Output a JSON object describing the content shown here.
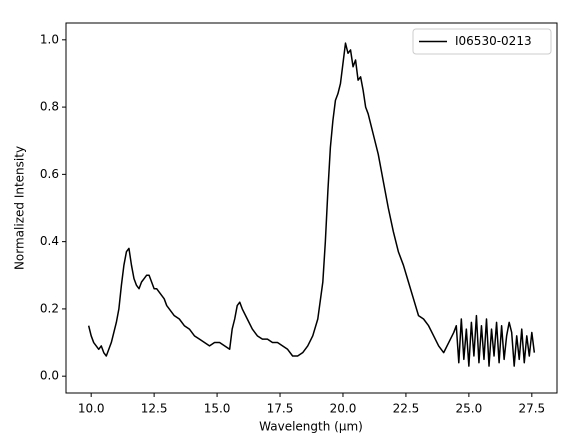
{
  "chart_data": {
    "type": "line",
    "xlabel": "Wavelength (μm)",
    "ylabel": "Normalized Intensity",
    "xlim": [
      9.0,
      28.5
    ],
    "ylim": [
      -0.05,
      1.05
    ],
    "xticks": [
      {
        "value": 10,
        "label": "10.0"
      },
      12.5,
      {
        "value": 15,
        "label": "15.0"
      },
      17.5,
      {
        "value": 20,
        "label": "20.0"
      },
      22.5,
      {
        "value": 25,
        "label": "25.0"
      },
      27.5
    ],
    "yticks": [
      {
        "value": 0,
        "label": "0.0"
      },
      0.2,
      0.4,
      0.6,
      0.8,
      {
        "value": 1,
        "label": "1.0"
      }
    ],
    "legend": "upper right",
    "series": [
      {
        "name": "I06530-0213",
        "color": "#000000",
        "x": [
          9.9,
          10.0,
          10.1,
          10.2,
          10.3,
          10.4,
          10.5,
          10.6,
          10.7,
          10.8,
          10.9,
          11.0,
          11.1,
          11.2,
          11.3,
          11.4,
          11.5,
          11.6,
          11.7,
          11.8,
          11.9,
          12.0,
          12.1,
          12.2,
          12.3,
          12.4,
          12.5,
          12.6,
          12.7,
          12.8,
          12.9,
          13.0,
          13.1,
          13.2,
          13.3,
          13.5,
          13.7,
          13.9,
          14.1,
          14.3,
          14.5,
          14.7,
          14.9,
          15.1,
          15.3,
          15.5,
          15.6,
          15.7,
          15.8,
          15.9,
          16.0,
          16.2,
          16.4,
          16.6,
          16.8,
          17.0,
          17.2,
          17.4,
          17.6,
          17.8,
          18.0,
          18.2,
          18.4,
          18.6,
          18.8,
          19.0,
          19.2,
          19.3,
          19.4,
          19.5,
          19.6,
          19.7,
          19.8,
          19.9,
          20.0,
          20.1,
          20.2,
          20.3,
          20.4,
          20.5,
          20.6,
          20.7,
          20.8,
          20.9,
          21.0,
          21.2,
          21.4,
          21.6,
          21.8,
          22.0,
          22.2,
          22.4,
          22.6,
          22.8,
          23.0,
          23.2,
          23.4,
          23.6,
          23.8,
          24.0,
          24.2,
          24.4,
          24.5,
          24.6,
          24.7,
          24.8,
          24.9,
          25.0,
          25.1,
          25.2,
          25.3,
          25.4,
          25.5,
          25.6,
          25.7,
          25.8,
          25.9,
          26.0,
          26.1,
          26.2,
          26.3,
          26.4,
          26.5,
          26.6,
          26.7,
          26.8,
          26.9,
          27.0,
          27.1,
          27.2,
          27.3,
          27.4,
          27.5,
          27.6
        ],
        "values": [
          0.15,
          0.12,
          0.1,
          0.09,
          0.08,
          0.09,
          0.07,
          0.06,
          0.08,
          0.1,
          0.13,
          0.16,
          0.2,
          0.27,
          0.33,
          0.37,
          0.38,
          0.33,
          0.29,
          0.27,
          0.26,
          0.28,
          0.29,
          0.3,
          0.3,
          0.28,
          0.26,
          0.26,
          0.25,
          0.24,
          0.23,
          0.21,
          0.2,
          0.19,
          0.18,
          0.17,
          0.15,
          0.14,
          0.12,
          0.11,
          0.1,
          0.09,
          0.1,
          0.1,
          0.09,
          0.08,
          0.14,
          0.17,
          0.21,
          0.22,
          0.2,
          0.17,
          0.14,
          0.12,
          0.11,
          0.11,
          0.1,
          0.1,
          0.09,
          0.08,
          0.06,
          0.06,
          0.07,
          0.09,
          0.12,
          0.17,
          0.28,
          0.4,
          0.55,
          0.68,
          0.76,
          0.82,
          0.84,
          0.87,
          0.93,
          0.99,
          0.96,
          0.97,
          0.92,
          0.94,
          0.88,
          0.89,
          0.85,
          0.8,
          0.78,
          0.72,
          0.66,
          0.58,
          0.5,
          0.43,
          0.37,
          0.33,
          0.28,
          0.23,
          0.18,
          0.17,
          0.15,
          0.12,
          0.09,
          0.07,
          0.1,
          0.13,
          0.15,
          0.04,
          0.17,
          0.05,
          0.14,
          0.03,
          0.16,
          0.06,
          0.18,
          0.04,
          0.15,
          0.05,
          0.17,
          0.03,
          0.14,
          0.06,
          0.16,
          0.04,
          0.15,
          0.05,
          0.12,
          0.16,
          0.13,
          0.03,
          0.12,
          0.05,
          0.14,
          0.04,
          0.12,
          0.06,
          0.13,
          0.07
        ]
      }
    ]
  }
}
